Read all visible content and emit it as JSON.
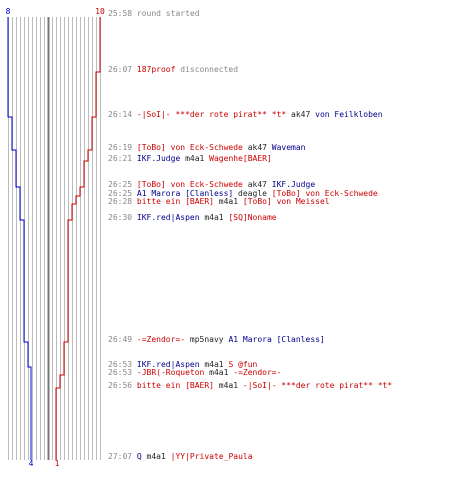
{
  "header": {
    "left_count": "8",
    "right_count": "10"
  },
  "footer": {
    "left_count": "4",
    "right_count": "1"
  },
  "colors": {
    "team_blue": "#0000cc",
    "team_red": "#cc0000",
    "grid": "#bbbbbb",
    "center": "#777777",
    "text_gray": "#888888"
  },
  "events": [
    {
      "time": "25:58",
      "parts": [
        {
          "t": "round started",
          "c": "gray"
        }
      ]
    },
    {
      "time": "26:07",
      "parts": [
        {
          "t": "187proof",
          "c": "red"
        },
        {
          "t": " disconnected",
          "c": "gray"
        }
      ]
    },
    {
      "time": "26:14",
      "parts": [
        {
          "t": "-|SoI|- ***der rote pirat** *t*",
          "c": "red"
        },
        {
          "t": " ak47 ",
          "c": "blk"
        },
        {
          "t": "von Feilkloben",
          "c": "blue"
        }
      ]
    },
    {
      "time": "26:19",
      "parts": [
        {
          "t": "[ToBo] von Eck-Schwede",
          "c": "red"
        },
        {
          "t": " ak47 ",
          "c": "blk"
        },
        {
          "t": "Waveman",
          "c": "blue"
        }
      ]
    },
    {
      "time": "26:21",
      "parts": [
        {
          "t": "IKF.Judge",
          "c": "blue"
        },
        {
          "t": " m4a1 ",
          "c": "blk"
        },
        {
          "t": "Wagenhe[BAER]",
          "c": "red"
        }
      ]
    },
    {
      "time": "26:25",
      "parts": [
        {
          "t": "[ToBo] von Eck-Schwede",
          "c": "red"
        },
        {
          "t": " ak47 ",
          "c": "blk"
        },
        {
          "t": "IKF.Judge",
          "c": "blue"
        }
      ]
    },
    {
      "time": "26:25",
      "parts": [
        {
          "t": "A1 Marora [Clanless]",
          "c": "blue"
        },
        {
          "t": " deagle ",
          "c": "blk"
        },
        {
          "t": "[ToBo] von Eck-Schwede",
          "c": "red"
        }
      ]
    },
    {
      "time": "26:28",
      "parts": [
        {
          "t": "bitte ein [BAER]",
          "c": "red"
        },
        {
          "t": " m4a1 ",
          "c": "blk"
        },
        {
          "t": "[ToBo] von Meissel",
          "c": "red"
        }
      ]
    },
    {
      "time": "26:30",
      "parts": [
        {
          "t": "IKF.red|Aspen",
          "c": "blue"
        },
        {
          "t": " m4a1 ",
          "c": "blk"
        },
        {
          "t": "[SQ]Noname",
          "c": "red"
        }
      ]
    },
    {
      "time": "26:49",
      "parts": [
        {
          "t": "-=Zendor=-",
          "c": "red"
        },
        {
          "t": " mp5navy ",
          "c": "blk"
        },
        {
          "t": "A1 Marora [Clanless]",
          "c": "blue"
        }
      ]
    },
    {
      "time": "26:53",
      "parts": [
        {
          "t": "IKF.red|Aspen",
          "c": "blue"
        },
        {
          "t": " m4a1 ",
          "c": "blk"
        },
        {
          "t": "S @fun",
          "c": "red"
        }
      ]
    },
    {
      "time": "26:53",
      "parts": [
        {
          "t": "-JBR(-Roqueton",
          "c": "red"
        },
        {
          "t": " m4a1 ",
          "c": "blk"
        },
        {
          "t": "-=Zendor=-",
          "c": "red"
        }
      ]
    },
    {
      "time": "26:56",
      "parts": [
        {
          "t": "bitte ein [BAER]",
          "c": "red"
        },
        {
          "t": " m4a1 ",
          "c": "blk"
        },
        {
          "t": "-|SoI|- ***der rote pirat** *t*",
          "c": "red"
        }
      ]
    },
    {
      "time": "27:07",
      "parts": [
        {
          "t": "Q",
          "c": "blue"
        },
        {
          "t": " m4a1 ",
          "c": "blk"
        },
        {
          "t": "|YY|Private_Paula",
          "c": "red"
        }
      ]
    }
  ]
}
